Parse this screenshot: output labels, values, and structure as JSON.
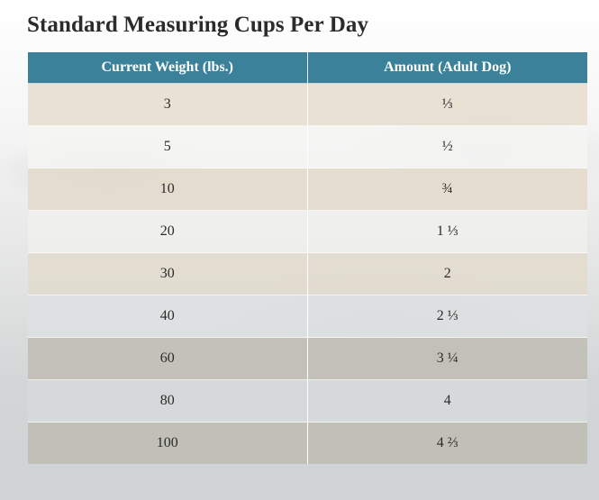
{
  "title": "Standard Measuring Cups Per Day",
  "table": {
    "headers": [
      "Current Weight (lbs.)",
      "Amount (Adult Dog)"
    ],
    "rows": [
      [
        "3",
        "⅓"
      ],
      [
        "5",
        "½"
      ],
      [
        "10",
        "¾"
      ],
      [
        "20",
        "1 ⅓"
      ],
      [
        "30",
        "2"
      ],
      [
        "40",
        "2 ⅓"
      ],
      [
        "60",
        "3 ¼"
      ],
      [
        "80",
        "4"
      ],
      [
        "100",
        "4 ⅔"
      ]
    ]
  },
  "colors": {
    "header_background": "#3a8199",
    "header_text": "#ffffff",
    "body_text": "#2b2b2b"
  }
}
